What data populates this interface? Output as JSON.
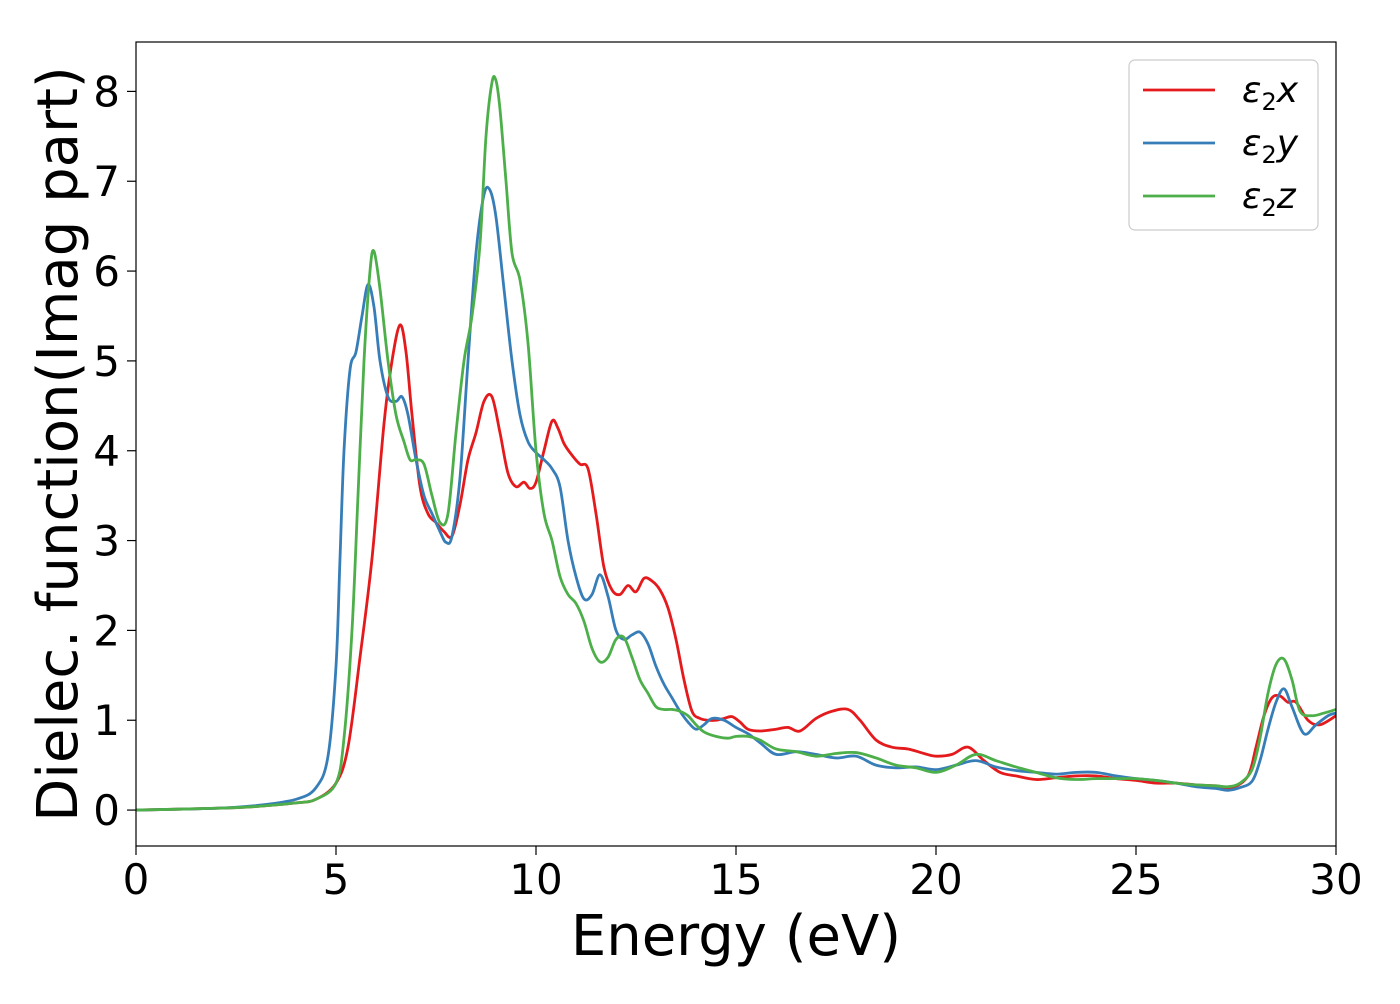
{
  "chart_data": {
    "type": "line",
    "title": "",
    "xlabel": "Energy (eV)",
    "ylabel": "Dielec. function(Imag part)",
    "xlim": [
      0,
      30
    ],
    "ylim": [
      -0.4,
      8.55
    ],
    "xticks": [
      0,
      5,
      10,
      15,
      20,
      25,
      30
    ],
    "yticks": [
      0,
      1,
      2,
      3,
      4,
      5,
      6,
      7,
      8
    ],
    "grid": false,
    "legend_position": "top-right",
    "series": [
      {
        "name": "ε₂x",
        "legend_base": "ε",
        "legend_sub": "2",
        "legend_suffix": "x",
        "color": "#e41a1c",
        "x": [
          0,
          2,
          3,
          4,
          4.5,
          5,
          5.3,
          5.6,
          5.9,
          6.2,
          6.4,
          6.6,
          6.75,
          6.9,
          7.1,
          7.3,
          7.5,
          7.7,
          7.9,
          8.1,
          8.3,
          8.5,
          8.7,
          8.9,
          9.1,
          9.3,
          9.5,
          9.7,
          9.85,
          10.0,
          10.2,
          10.4,
          10.55,
          10.7,
          10.9,
          11.1,
          11.3,
          11.5,
          11.7,
          11.9,
          12.1,
          12.3,
          12.5,
          12.7,
          12.9,
          13.1,
          13.3,
          13.5,
          13.7,
          13.9,
          14.1,
          14.3,
          14.5,
          14.7,
          14.9,
          15.1,
          15.3,
          15.6,
          16.0,
          16.3,
          16.6,
          17.0,
          17.4,
          17.8,
          18.1,
          18.5,
          18.9,
          19.3,
          19.7,
          20.0,
          20.4,
          20.8,
          21.2,
          21.6,
          22.0,
          22.5,
          23.0,
          23.5,
          24.0,
          24.5,
          25.0,
          25.5,
          26.0,
          26.5,
          27.0,
          27.4,
          27.8,
          28.0,
          28.2,
          28.4,
          28.6,
          28.8,
          29.0,
          29.3,
          29.6,
          30
        ],
        "y": [
          0,
          0.02,
          0.04,
          0.08,
          0.12,
          0.3,
          0.7,
          1.7,
          2.8,
          4.3,
          5.0,
          5.4,
          5.1,
          4.4,
          3.6,
          3.3,
          3.2,
          3.1,
          3.05,
          3.4,
          3.9,
          4.2,
          4.55,
          4.6,
          4.2,
          3.75,
          3.6,
          3.65,
          3.58,
          3.65,
          4.0,
          4.33,
          4.25,
          4.08,
          3.95,
          3.85,
          3.8,
          3.3,
          2.7,
          2.45,
          2.4,
          2.5,
          2.43,
          2.58,
          2.55,
          2.45,
          2.25,
          1.9,
          1.45,
          1.1,
          1.02,
          1.0,
          1.0,
          1.02,
          1.04,
          0.98,
          0.9,
          0.88,
          0.9,
          0.92,
          0.88,
          1.02,
          1.1,
          1.12,
          1.0,
          0.78,
          0.7,
          0.68,
          0.63,
          0.6,
          0.62,
          0.7,
          0.55,
          0.42,
          0.38,
          0.34,
          0.36,
          0.38,
          0.38,
          0.35,
          0.33,
          0.3,
          0.3,
          0.28,
          0.27,
          0.25,
          0.38,
          0.7,
          1.05,
          1.25,
          1.27,
          1.2,
          1.2,
          1.0,
          0.95,
          1.05
        ]
      },
      {
        "name": "ε₂y",
        "legend_base": "ε",
        "legend_sub": "2",
        "legend_suffix": "y",
        "color": "#377eb8",
        "x": [
          0,
          2,
          3,
          4,
          4.5,
          4.8,
          5.0,
          5.1,
          5.2,
          5.35,
          5.5,
          5.65,
          5.8,
          5.95,
          6.1,
          6.3,
          6.5,
          6.65,
          6.8,
          7.0,
          7.2,
          7.4,
          7.6,
          7.75,
          7.9,
          8.1,
          8.3,
          8.5,
          8.7,
          8.85,
          9.0,
          9.2,
          9.4,
          9.6,
          9.8,
          10.0,
          10.2,
          10.4,
          10.6,
          10.8,
          11.0,
          11.2,
          11.4,
          11.6,
          11.8,
          12.0,
          12.2,
          12.4,
          12.6,
          12.8,
          13.0,
          13.2,
          13.4,
          13.6,
          13.8,
          14.0,
          14.2,
          14.4,
          14.7,
          15.0,
          15.3,
          15.6,
          16.0,
          16.5,
          17.0,
          17.5,
          18.0,
          18.5,
          19.0,
          19.5,
          20.0,
          20.5,
          21.0,
          21.5,
          22.0,
          22.5,
          23.0,
          23.5,
          24.0,
          24.5,
          25.0,
          25.5,
          26.0,
          26.5,
          27.0,
          27.3,
          27.6,
          27.9,
          28.1,
          28.3,
          28.5,
          28.7,
          28.9,
          29.2,
          29.5,
          29.8,
          30
        ],
        "y": [
          0,
          0.02,
          0.05,
          0.12,
          0.25,
          0.6,
          1.6,
          2.8,
          4.0,
          4.9,
          5.1,
          5.5,
          5.85,
          5.6,
          5.0,
          4.6,
          4.55,
          4.6,
          4.4,
          3.9,
          3.5,
          3.3,
          3.1,
          2.98,
          3.05,
          3.7,
          5.0,
          6.2,
          6.85,
          6.9,
          6.6,
          5.8,
          5.0,
          4.4,
          4.1,
          3.98,
          3.9,
          3.8,
          3.6,
          3.0,
          2.6,
          2.35,
          2.4,
          2.62,
          2.38,
          2.0,
          1.9,
          1.95,
          1.98,
          1.85,
          1.6,
          1.4,
          1.25,
          1.1,
          0.98,
          0.9,
          0.95,
          1.02,
          1.0,
          0.92,
          0.85,
          0.75,
          0.62,
          0.65,
          0.62,
          0.58,
          0.6,
          0.5,
          0.47,
          0.48,
          0.45,
          0.5,
          0.55,
          0.48,
          0.44,
          0.42,
          0.4,
          0.42,
          0.42,
          0.38,
          0.35,
          0.33,
          0.3,
          0.26,
          0.24,
          0.22,
          0.25,
          0.32,
          0.55,
          0.9,
          1.2,
          1.35,
          1.15,
          0.85,
          0.95,
          1.05,
          1.08
        ]
      },
      {
        "name": "ε₂z",
        "legend_base": "ε",
        "legend_sub": "2",
        "legend_suffix": "z",
        "color": "#4daf4a",
        "x": [
          0,
          2,
          3,
          4,
          4.5,
          5.0,
          5.2,
          5.4,
          5.55,
          5.7,
          5.85,
          5.95,
          6.1,
          6.3,
          6.5,
          6.7,
          6.85,
          7.0,
          7.2,
          7.4,
          7.6,
          7.8,
          8.0,
          8.2,
          8.4,
          8.6,
          8.75,
          8.9,
          9.0,
          9.1,
          9.25,
          9.4,
          9.6,
          9.8,
          10.0,
          10.2,
          10.4,
          10.6,
          10.8,
          11.0,
          11.2,
          11.4,
          11.6,
          11.8,
          12.0,
          12.2,
          12.4,
          12.6,
          12.8,
          13.0,
          13.2,
          13.4,
          13.6,
          13.8,
          14.0,
          14.2,
          14.5,
          14.8,
          15.0,
          15.3,
          15.6,
          16.0,
          16.5,
          17.0,
          17.5,
          18.0,
          18.5,
          19.0,
          19.5,
          20.0,
          20.5,
          21.0,
          21.5,
          22.0,
          22.5,
          23.0,
          23.5,
          24.0,
          24.5,
          25.0,
          25.5,
          26.0,
          26.5,
          27.0,
          27.3,
          27.6,
          27.9,
          28.1,
          28.3,
          28.5,
          28.7,
          28.9,
          29.1,
          29.4,
          29.7,
          30
        ],
        "y": [
          0,
          0.02,
          0.04,
          0.08,
          0.12,
          0.3,
          0.8,
          2.0,
          3.5,
          5.0,
          6.0,
          6.22,
          5.8,
          5.0,
          4.4,
          4.1,
          3.9,
          3.9,
          3.85,
          3.5,
          3.2,
          3.3,
          4.2,
          5.0,
          5.5,
          6.3,
          7.5,
          8.1,
          8.12,
          7.8,
          7.0,
          6.2,
          5.9,
          5.2,
          4.0,
          3.3,
          3.0,
          2.6,
          2.4,
          2.3,
          2.1,
          1.8,
          1.65,
          1.7,
          1.9,
          1.92,
          1.7,
          1.45,
          1.3,
          1.15,
          1.12,
          1.12,
          1.1,
          1.05,
          0.95,
          0.87,
          0.82,
          0.8,
          0.82,
          0.82,
          0.78,
          0.68,
          0.65,
          0.6,
          0.63,
          0.64,
          0.58,
          0.5,
          0.47,
          0.42,
          0.5,
          0.62,
          0.55,
          0.48,
          0.42,
          0.36,
          0.34,
          0.35,
          0.35,
          0.35,
          0.33,
          0.3,
          0.28,
          0.27,
          0.26,
          0.3,
          0.45,
          0.8,
          1.3,
          1.62,
          1.68,
          1.45,
          1.1,
          1.05,
          1.08,
          1.12
        ]
      }
    ]
  }
}
